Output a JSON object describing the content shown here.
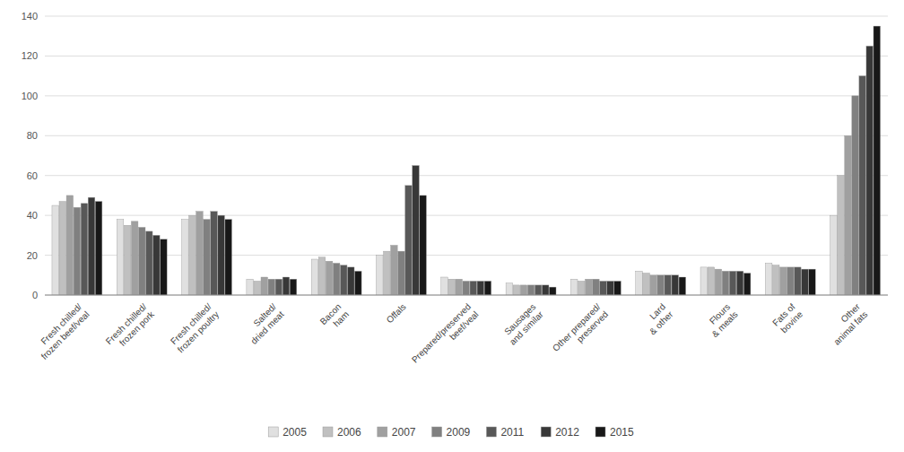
{
  "chart_data": {
    "type": "bar",
    "categories": [
      "Fresh chilled/\nfrozen beef/veal",
      "Fresh chilled/\nfrozen pork",
      "Fresh chilled/\nfrozen poultry",
      "Salted/\ndried meat",
      "Bacon\nham",
      "Offals",
      "Prepared/preserved\nbeef/veal",
      "Sausages\nand similar",
      "Other prepared/\npreserved",
      "Lard\n& other",
      "Flours\n& meals",
      "Fats of\nbovine",
      "Other\nanimal fats"
    ],
    "series": [
      {
        "name": "2005",
        "color": "#e0e0e0",
        "values": [
          45,
          38,
          38,
          8,
          18,
          20,
          9,
          6,
          8,
          12,
          14,
          16,
          40
        ]
      },
      {
        "name": "2006",
        "color": "#c0c0c0",
        "values": [
          47,
          35,
          40,
          7,
          19,
          22,
          8,
          5,
          7,
          11,
          14,
          15,
          60
        ]
      },
      {
        "name": "2007",
        "color": "#a0a0a0",
        "values": [
          50,
          37,
          42,
          9,
          17,
          25,
          8,
          5,
          8,
          10,
          13,
          14,
          80
        ]
      },
      {
        "name": "2009",
        "color": "#808080",
        "values": [
          44,
          34,
          38,
          8,
          16,
          22,
          7,
          5,
          8,
          10,
          12,
          14,
          100
        ]
      },
      {
        "name": "2011",
        "color": "#585858",
        "values": [
          46,
          32,
          42,
          8,
          15,
          55,
          7,
          5,
          7,
          10,
          12,
          14,
          110
        ]
      },
      {
        "name": "2012",
        "color": "#383838",
        "values": [
          49,
          30,
          40,
          9,
          14,
          65,
          7,
          5,
          7,
          10,
          12,
          13,
          125
        ]
      },
      {
        "name": "2015",
        "color": "#181818",
        "values": [
          47,
          28,
          38,
          8,
          12,
          50,
          7,
          4,
          7,
          9,
          11,
          13,
          135
        ]
      }
    ],
    "ylim": [
      0,
      140
    ],
    "yticks": [
      0,
      20,
      40,
      60,
      80,
      100,
      120,
      140
    ],
    "grid": true,
    "legend": "bottom"
  }
}
